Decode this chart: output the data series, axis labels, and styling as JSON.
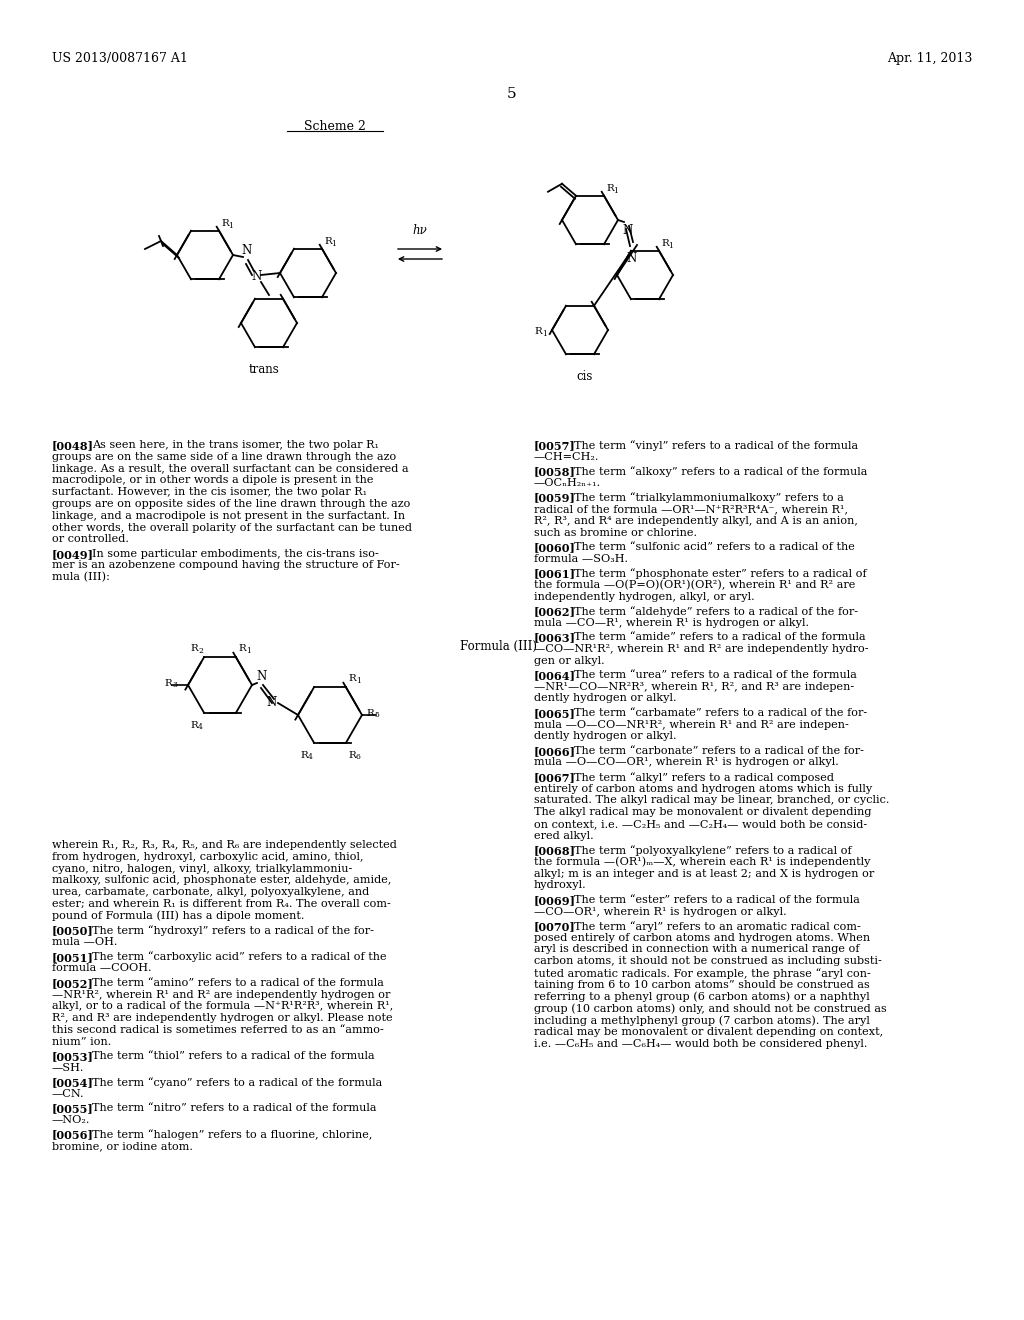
{
  "bg_color": "#ffffff",
  "header_left": "US 2013/0087167 A1",
  "header_right": "Apr. 11, 2013",
  "page_number": "5",
  "scheme_label": "Scheme 2",
  "trans_label": "trans",
  "cis_label": "cis",
  "formula_label": "Formula (III)",
  "col1_paragraphs": [
    {
      "tag": "[0048]",
      "lines": [
        "    As seen here, in the trans isomer, the two polar R₁",
        "groups are on the same side of a line drawn through the azo",
        "linkage. As a result, the overall surfactant can be considered a",
        "macrodipole, or in other words a dipole is present in the",
        "surfactant. However, in the cis isomer, the two polar R₁",
        "groups are on opposite sides of the line drawn through the azo",
        "linkage, and a macrodipole is not present in the surfactant. In",
        "other words, the overall polarity of the surfactant can be tuned",
        "or controlled."
      ]
    },
    {
      "tag": "[0049]",
      "lines": [
        "    In some particular embodiments, the cis-trans iso-",
        "mer is an azobenzene compound having the structure of For-",
        "mula (III):"
      ]
    }
  ],
  "col1_wherein": [
    "wherein R₁, R₂, R₃, R₄, R₅, and R₆ are independently selected",
    "from hydrogen, hydroxyl, carboxylic acid, amino, thiol,",
    "cyano, nitro, halogen, vinyl, alkoxy, trialkylammoniu-",
    "malkoxy, sulfonic acid, phosphonate ester, aldehyde, amide,",
    "urea, carbamate, carbonate, alkyl, polyoxyalkylene, and",
    "ester; and wherein R₁ is different from R₄. The overall com-",
    "pound of Formula (III) has a dipole moment."
  ],
  "col1_paragraphs2": [
    {
      "tag": "[0050]",
      "lines": [
        "    The term “hydroxyl” refers to a radical of the for-",
        "mula —OH."
      ]
    },
    {
      "tag": "[0051]",
      "lines": [
        "    The term “carboxylic acid” refers to a radical of the",
        "formula —COOH."
      ]
    },
    {
      "tag": "[0052]",
      "lines": [
        "    The term “amino” refers to a radical of the formula",
        "—NR¹R², wherein R¹ and R² are independently hydrogen or",
        "alkyl, or to a radical of the formula —N⁺R¹R²R³, wherein R¹,",
        "R², and R³ are independently hydrogen or alkyl. Please note",
        "this second radical is sometimes referred to as an “ammo-",
        "nium” ion."
      ]
    },
    {
      "tag": "[0053]",
      "lines": [
        "    The term “thiol” refers to a radical of the formula",
        "—SH."
      ]
    },
    {
      "tag": "[0054]",
      "lines": [
        "    The term “cyano” refers to a radical of the formula",
        "—CN."
      ]
    },
    {
      "tag": "[0055]",
      "lines": [
        "    The term “nitro” refers to a radical of the formula",
        "—NO₂."
      ]
    },
    {
      "tag": "[0056]",
      "lines": [
        "    The term “halogen” refers to a fluorine, chlorine,",
        "bromine, or iodine atom."
      ]
    }
  ],
  "col2_paragraphs": [
    {
      "tag": "[0057]",
      "lines": [
        "    The term “vinyl” refers to a radical of the formula",
        "—CH=CH₂."
      ]
    },
    {
      "tag": "[0058]",
      "lines": [
        "    The term “alkoxy” refers to a radical of the formula",
        "—OCₙH₂ₙ₊₁."
      ]
    },
    {
      "tag": "[0059]",
      "lines": [
        "    The term “trialkylammoniumalkoxy” refers to a",
        "radical of the formula —OR¹—N⁺R²R³R⁴A⁻, wherein R¹,",
        "R², R³, and R⁴ are independently alkyl, and A is an anion,",
        "such as bromine or chlorine."
      ]
    },
    {
      "tag": "[0060]",
      "lines": [
        "    The term “sulfonic acid” refers to a radical of the",
        "formula —SO₃H."
      ]
    },
    {
      "tag": "[0061]",
      "lines": [
        "    The term “phosphonate ester” refers to a radical of",
        "the formula —O(P=O)(OR¹)(OR²), wherein R¹ and R² are",
        "independently hydrogen, alkyl, or aryl."
      ]
    },
    {
      "tag": "[0062]",
      "lines": [
        "    The term “aldehyde” refers to a radical of the for-",
        "mula —CO—R¹, wherein R¹ is hydrogen or alkyl."
      ]
    },
    {
      "tag": "[0063]",
      "lines": [
        "    The term “amide” refers to a radical of the formula",
        "—CO—NR¹R², wherein R¹ and R² are independently hydro-",
        "gen or alkyl."
      ]
    },
    {
      "tag": "[0064]",
      "lines": [
        "    The term “urea” refers to a radical of the formula",
        "—NR¹—CO—NR²R³, wherein R¹, R², and R³ are indepen-",
        "dently hydrogen or alkyl."
      ]
    },
    {
      "tag": "[0065]",
      "lines": [
        "    The term “carbamate” refers to a radical of the for-",
        "mula —O—CO—NR¹R², wherein R¹ and R² are indepen-",
        "dently hydrogen or alkyl."
      ]
    },
    {
      "tag": "[0066]",
      "lines": [
        "    The term “carbonate” refers to a radical of the for-",
        "mula —O—CO—OR¹, wherein R¹ is hydrogen or alkyl."
      ]
    },
    {
      "tag": "[0067]",
      "lines": [
        "    The term “alkyl” refers to a radical composed",
        "entirely of carbon atoms and hydrogen atoms which is fully",
        "saturated. The alkyl radical may be linear, branched, or cyclic.",
        "The alkyl radical may be monovalent or divalent depending",
        "on context, i.e. —C₂H₅ and —C₂H₄— would both be consid-",
        "ered alkyl."
      ]
    },
    {
      "tag": "[0068]",
      "lines": [
        "    The term “polyoxyalkylene” refers to a radical of",
        "the formula —(OR¹)ₘ—X, wherein each R¹ is independently",
        "alkyl; m is an integer and is at least 2; and X is hydrogen or",
        "hydroxyl."
      ]
    },
    {
      "tag": "[0069]",
      "lines": [
        "    The term “ester” refers to a radical of the formula",
        "—CO—OR¹, wherein R¹ is hydrogen or alkyl."
      ]
    },
    {
      "tag": "[0070]",
      "lines": [
        "    The term “aryl” refers to an aromatic radical com-",
        "posed entirely of carbon atoms and hydrogen atoms. When",
        "aryl is described in connection with a numerical range of",
        "carbon atoms, it should not be construed as including substi-",
        "tuted aromatic radicals. For example, the phrase “aryl con-",
        "taining from 6 to 10 carbon atoms” should be construed as",
        "referring to a phenyl group (6 carbon atoms) or a naphthyl",
        "group (10 carbon atoms) only, and should not be construed as",
        "including a methylphenyl group (7 carbon atoms). The aryl",
        "radical may be monovalent or divalent depending on context,",
        "i.e. —C₆H₅ and —C₆H₄— would both be considered phenyl."
      ]
    }
  ]
}
